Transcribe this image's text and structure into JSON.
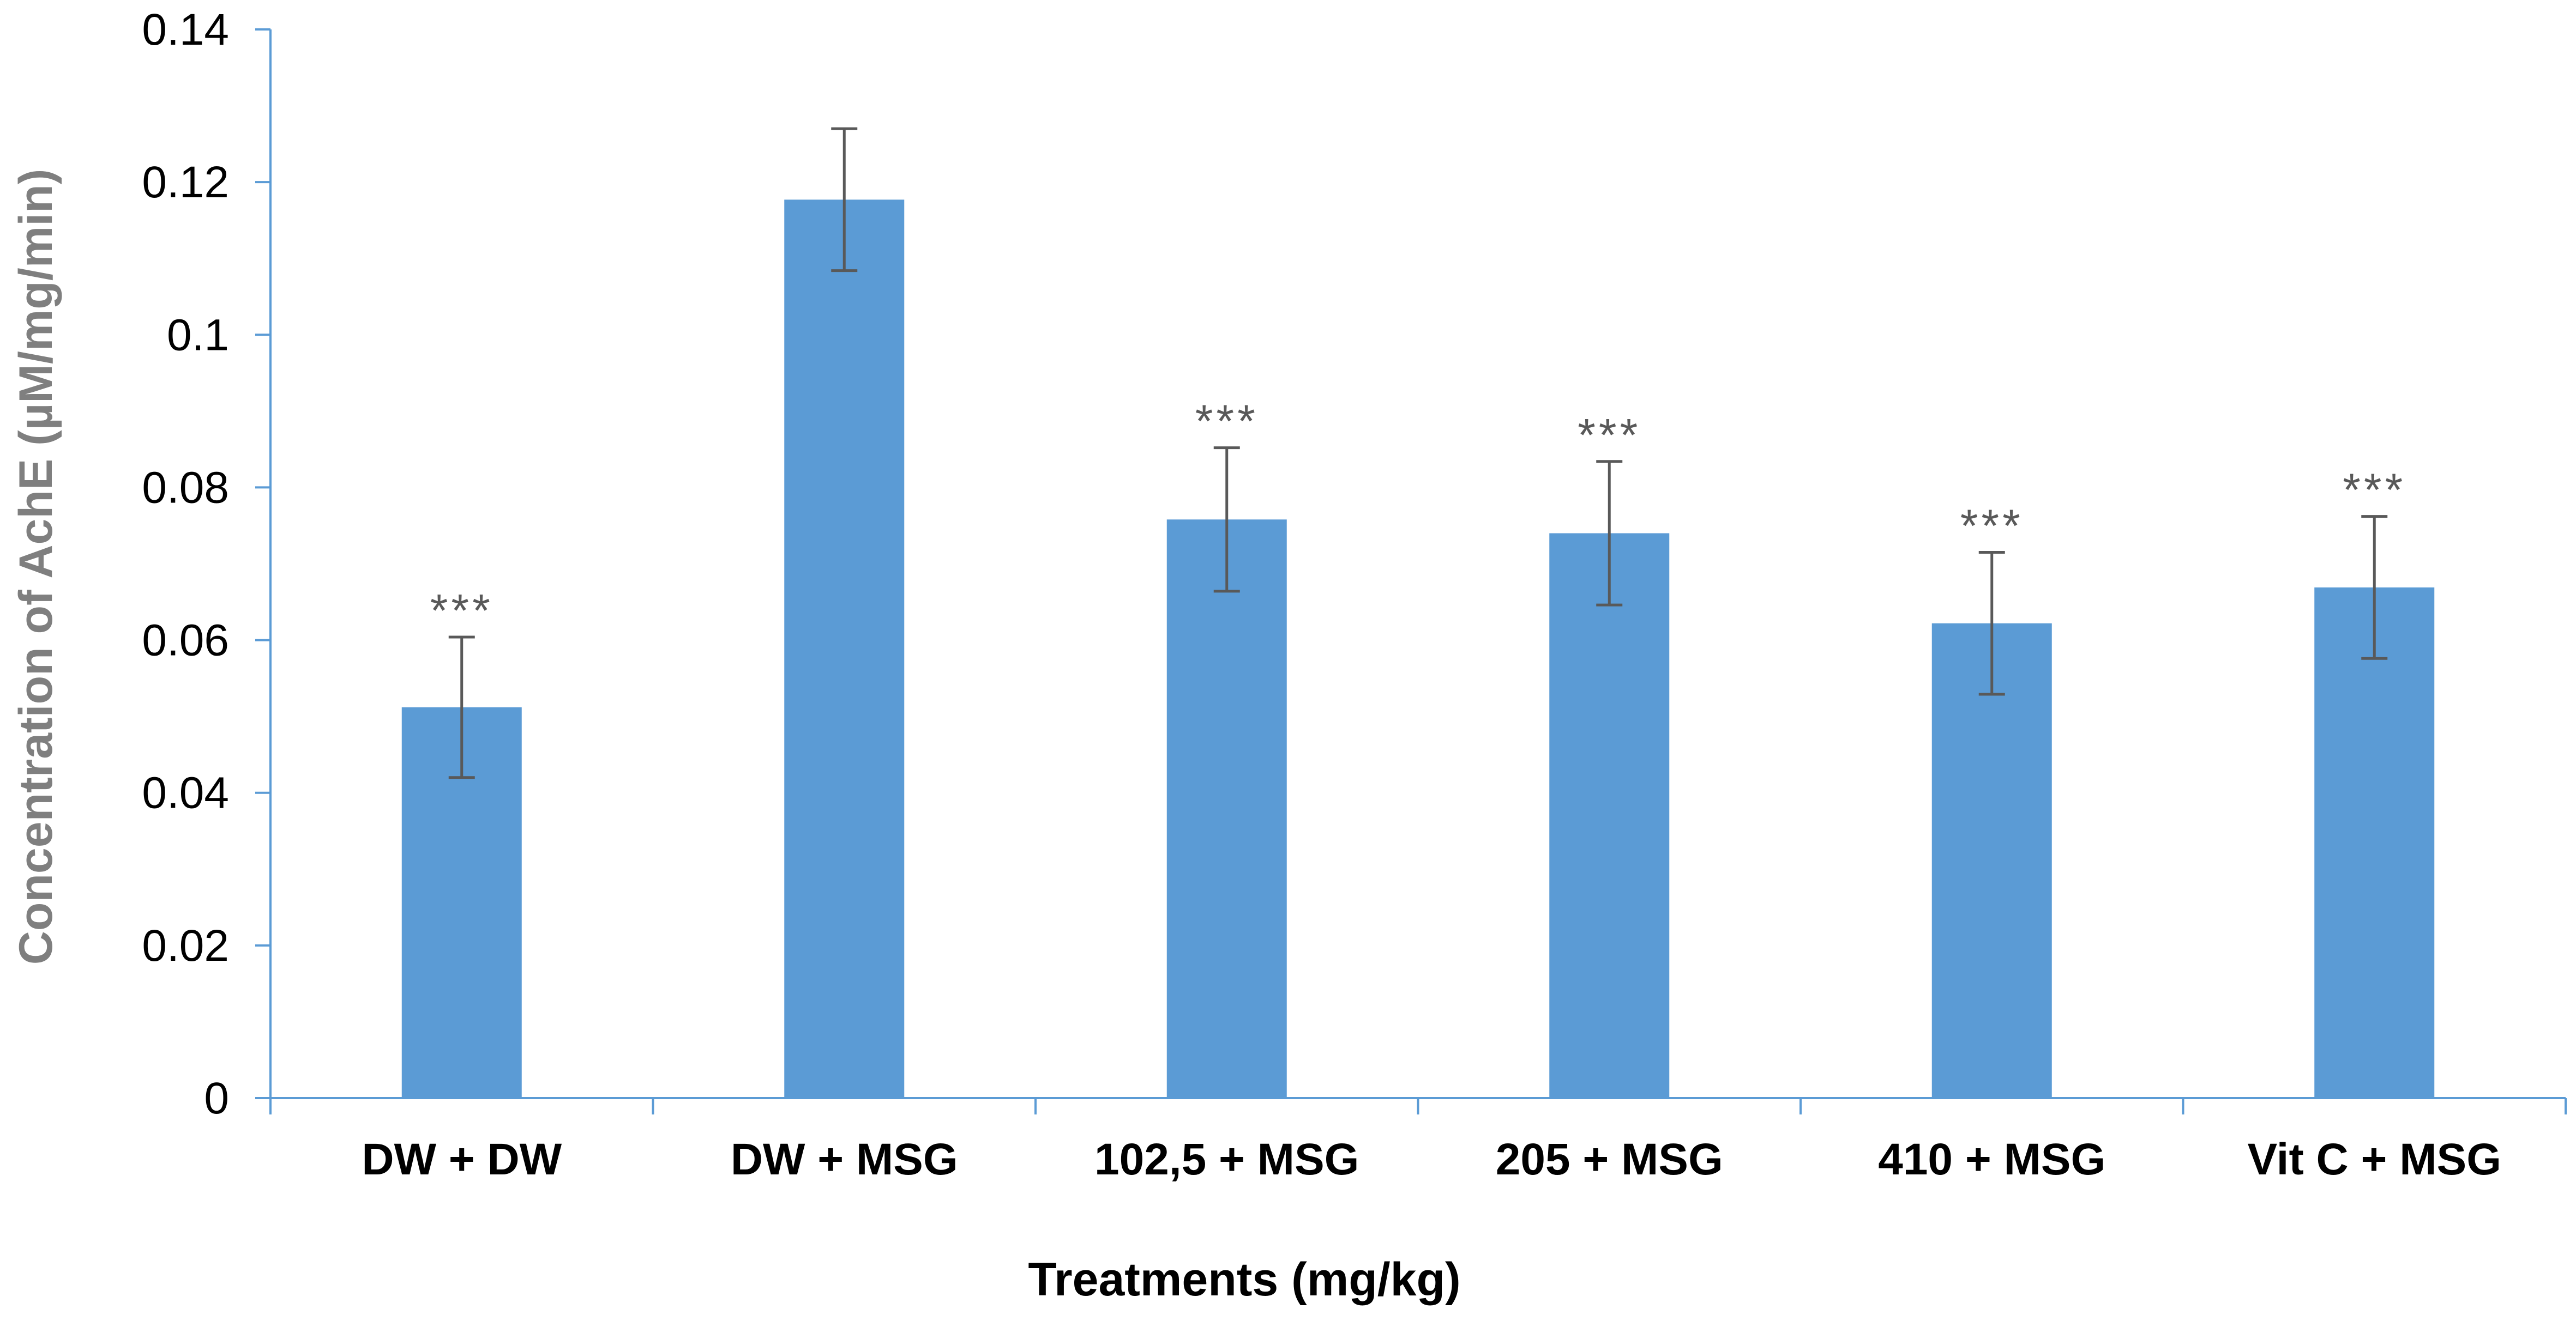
{
  "chart_data": {
    "type": "bar",
    "title": "",
    "xlabel": "Treatments (mg/kg)",
    "ylabel": "Concentration of AchE (µM/mg/min)",
    "ylim": [
      0,
      0.14
    ],
    "yticks": [
      0,
      0.02,
      0.04,
      0.06,
      0.08,
      0.1,
      0.12,
      0.14
    ],
    "ytick_labels": [
      "0",
      "0.02",
      "0.04",
      "0.06",
      "0.08",
      "0.1",
      "0.12",
      "0.14"
    ],
    "grid": false,
    "legend": "none",
    "categories": [
      "DW + DW",
      "DW + MSG",
      "102,5 + MSG",
      "205 + MSG",
      "410 + MSG",
      "Vit C + MSG"
    ],
    "values": [
      0.0512,
      0.1177,
      0.0758,
      0.074,
      0.0622,
      0.0669
    ],
    "error": [
      0.0092,
      0.0093,
      0.0094,
      0.0094,
      0.0093,
      0.0093
    ],
    "annotations": [
      "***",
      "",
      "***",
      "***",
      "***",
      "***"
    ]
  },
  "colors": {
    "bar": "#5b9bd5",
    "axis": "#5b9bd5",
    "error_bar": "#595959",
    "xlabel": "#000000",
    "ylabel": "#7f7f7f"
  }
}
